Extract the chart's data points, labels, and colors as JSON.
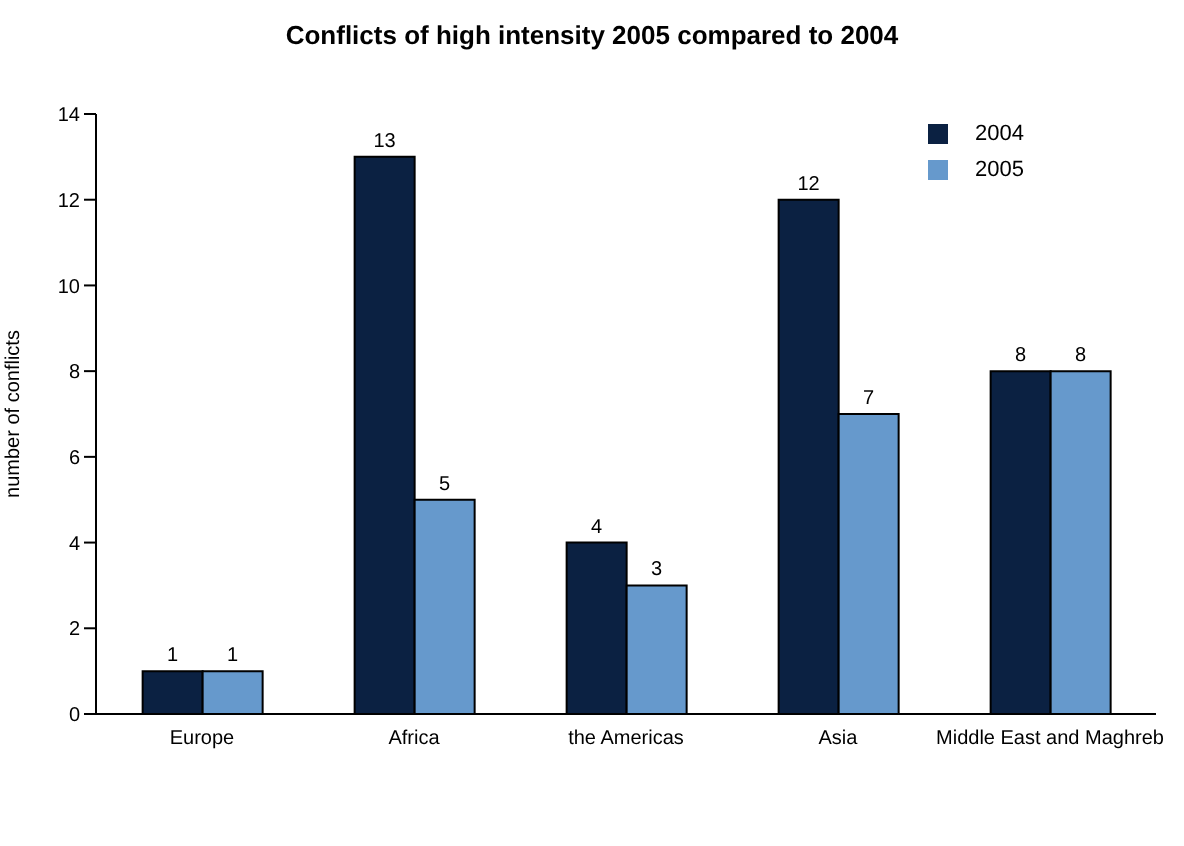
{
  "chart_data": {
    "type": "bar",
    "title": "Conflicts of high intensity 2005 compared to 2004",
    "ylabel": "number of conflicts",
    "categories": [
      "Europe",
      "Africa",
      "the Americas",
      "Asia",
      "Middle East and Maghreb"
    ],
    "series": [
      {
        "name": "2004",
        "color": "#0b2142",
        "values": [
          1,
          13,
          4,
          12,
          8
        ]
      },
      {
        "name": "2005",
        "color": "#6699cc",
        "values": [
          1,
          5,
          3,
          7,
          8
        ]
      }
    ],
    "ylim": [
      0,
      14
    ],
    "yticks": [
      0,
      2,
      4,
      6,
      8,
      10,
      12,
      14
    ],
    "grid": false,
    "legend": "top right",
    "data_labels": true
  }
}
